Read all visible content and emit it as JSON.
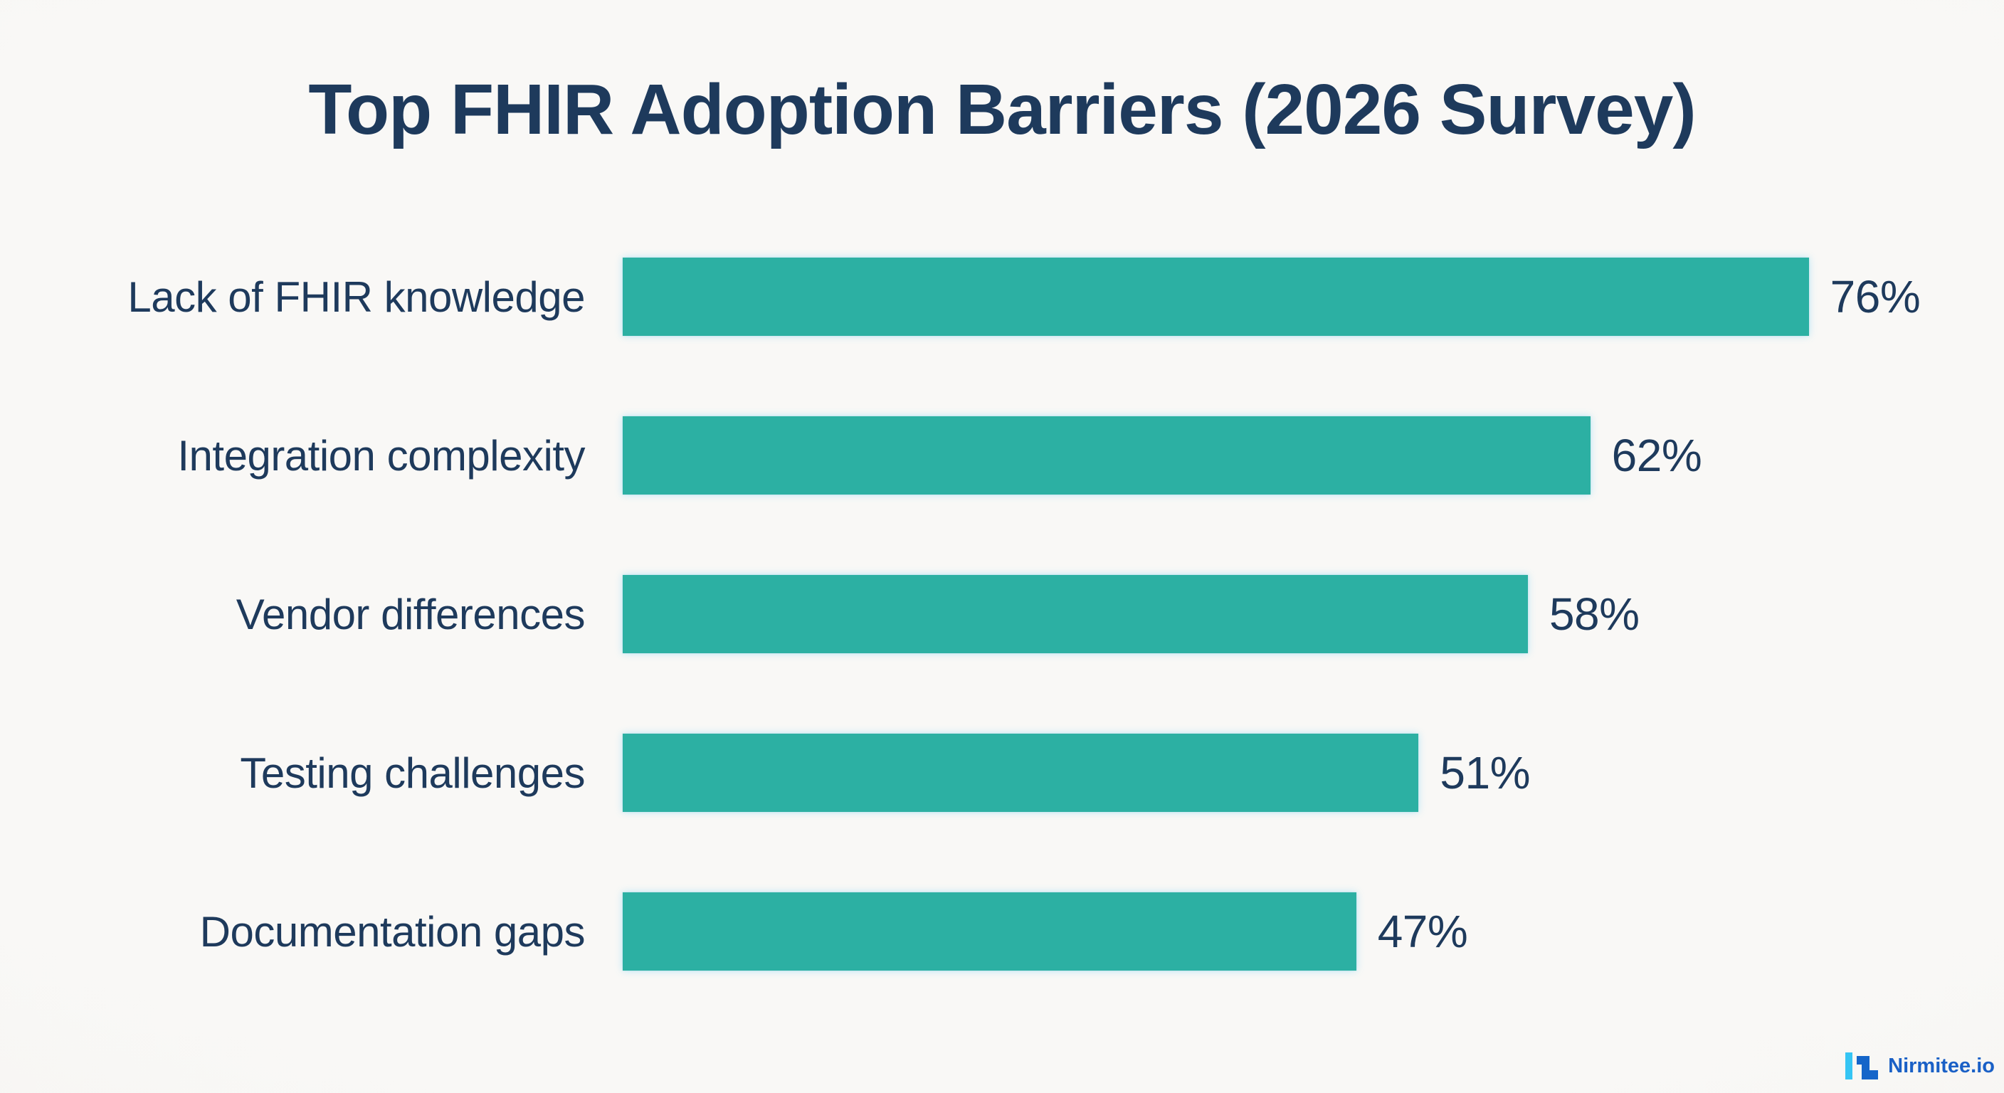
{
  "title": "Top FHIR Adoption Barriers (2026 Survey)",
  "chart_data": {
    "type": "bar",
    "orientation": "horizontal",
    "title": "Top FHIR Adoption Barriers (2026 Survey)",
    "categories": [
      "Lack of FHIR knowledge",
      "Integration complexity",
      "Vendor differences",
      "Testing challenges",
      "Documentation gaps"
    ],
    "values": [
      76,
      62,
      58,
      51,
      47
    ],
    "value_labels": [
      "76%",
      "62%",
      "58%",
      "51%",
      "47%"
    ],
    "unit": "%",
    "xlim": [
      0,
      100
    ],
    "grid": false,
    "legend": false,
    "bar_color": "#2cb0a3",
    "text_color": "#1e3a5c",
    "background_color": "#f8f7f5"
  },
  "branding": {
    "logo_text": "Nirmitee.io",
    "logo_text_color": "#1a60c6",
    "logo_icon": "nirmitee-logo-icon",
    "icon_light_color": "#35c5f4",
    "icon_dark_color": "#1565c9"
  }
}
